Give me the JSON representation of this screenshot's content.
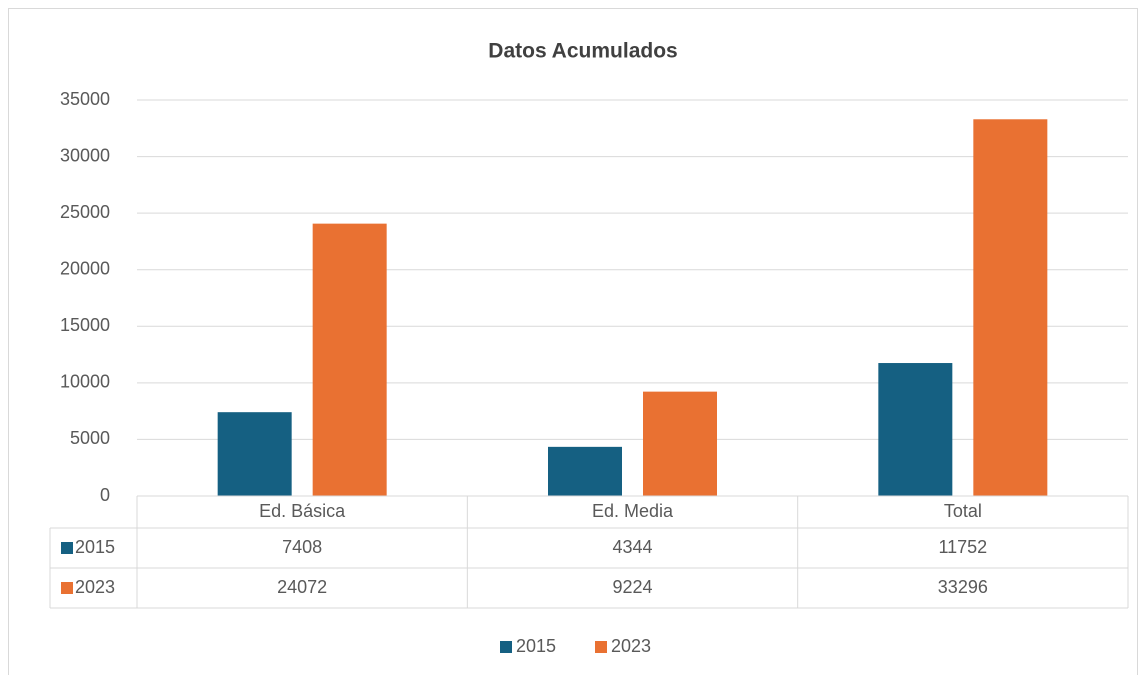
{
  "chart_data": {
    "type": "bar",
    "title": "Datos Acumulados",
    "categories": [
      "Ed. Básica",
      "Ed. Media",
      "Total"
    ],
    "series": [
      {
        "name": "2015",
        "color": "#156082",
        "values": [
          7408,
          4344,
          11752
        ]
      },
      {
        "name": "2023",
        "color": "#e97132",
        "values": [
          24072,
          9224,
          33296
        ]
      }
    ],
    "ylim": [
      0,
      35000
    ],
    "yticks": [
      0,
      5000,
      10000,
      15000,
      20000,
      25000,
      30000,
      35000
    ],
    "grid": true,
    "data_table": true,
    "legend": "bottom"
  }
}
